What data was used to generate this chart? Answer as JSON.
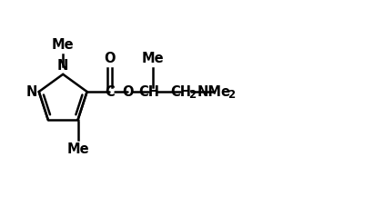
{
  "bg_color": "#ffffff",
  "line_color": "#000000",
  "text_color": "#000000",
  "bond_lw": 1.8,
  "font_size": 10.5,
  "font_size_sub": 7.5,
  "figsize": [
    4.11,
    2.27
  ],
  "dpi": 100,
  "xlim": [
    0,
    10.5
  ],
  "ylim": [
    0,
    5.5
  ]
}
